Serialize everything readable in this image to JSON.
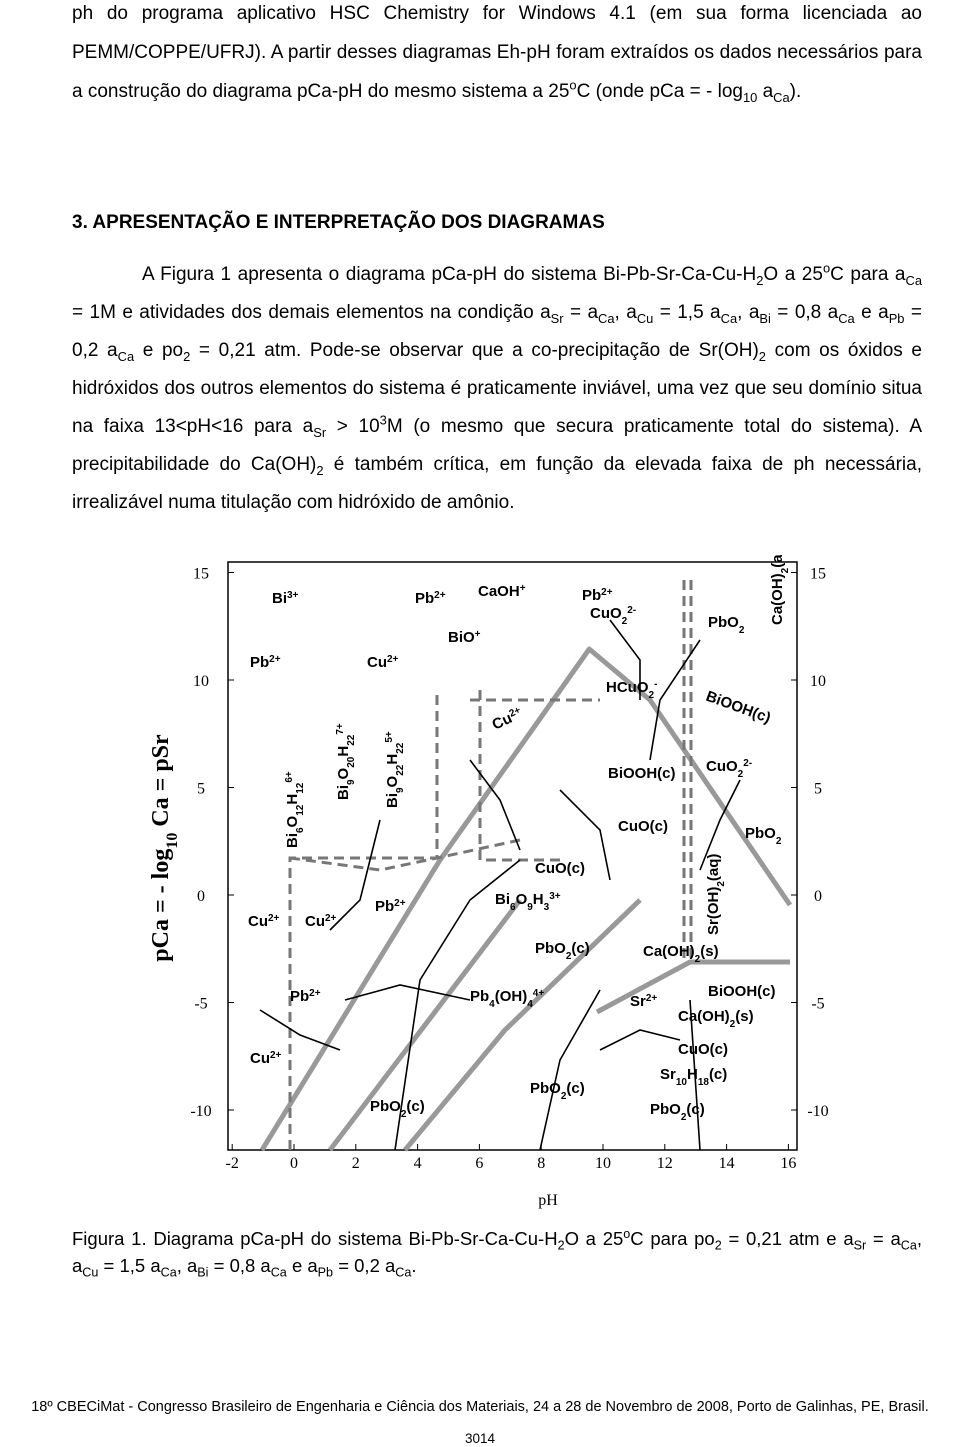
{
  "paragraphs": [
    {
      "runs": [
        "ph do programa aplicativo HSC Chemistry for Windows 4.1 (em sua forma licenciada ao PEMM/COPPE/UFRJ). A partir desses diagramas Eh-pH foram extraídos os dados necessários para a construção do diagrama pCa-pH do mesmo sistema a 25",
        {
          "sup": "o"
        },
        "C (onde pCa = - log",
        {
          "sub": "10"
        },
        " a",
        {
          "sub": "Ca"
        },
        ")."
      ]
    },
    {
      "runs": [
        "A Figura 1 apresenta o diagrama pCa-pH do sistema Bi-Pb-Sr-Ca-Cu-H",
        {
          "sub": "2"
        },
        "O a 25",
        {
          "sup": "o"
        },
        "C para a",
        {
          "sub": "Ca"
        },
        " = 1M e atividades dos demais elementos na condição a",
        {
          "sub": "Sr"
        },
        " = a",
        {
          "sub": "Ca"
        },
        ", a",
        {
          "sub": "Cu"
        },
        " = 1,5 a",
        {
          "sub": "Ca"
        },
        ", a",
        {
          "sub": "Bi"
        },
        " = 0,8 a",
        {
          "sub": "Ca"
        },
        " e a",
        {
          "sub": "Pb"
        },
        " = 0,2 a",
        {
          "sub": "Ca"
        },
        " e po",
        {
          "sub": "2"
        },
        " = 0,21 atm. Pode-se observar que a co-precipitação de Sr(OH)",
        {
          "sub": "2"
        },
        " com os óxidos e hidróxidos dos outros elementos do sistema é praticamente inviável, uma vez que seu domínio situa na faixa 13<pH<16 para a",
        {
          "sub": "Sr"
        },
        " > 10",
        {
          "sup": "3"
        },
        "M (o mesmo que secura praticamente total do sistema). A precipitabilidade do Ca(OH)",
        {
          "sub": "2"
        },
        " é também crítica, em função da elevada faixa de ph necessária, irrealizável numa titulação com hidróxido de amônio."
      ]
    }
  ],
  "heading": "3. APRESENTAÇÃO E INTERPRETAÇÃO DOS DIAGRAMAS",
  "figure": {
    "y_axis_label": [
      "pCa = - log",
      {
        "sub": "10"
      },
      " Ca = pSr"
    ],
    "x_axis_label": "pH",
    "x_ticks": [
      -2,
      0,
      2,
      4,
      6,
      8,
      10,
      12,
      14,
      16
    ],
    "y_ticks": [
      15,
      10,
      5,
      0,
      -5,
      -10
    ],
    "species": [
      {
        "label": [
          "Bi",
          {
            "sup": "3+"
          }
        ]
      },
      {
        "label": [
          "Pb",
          {
            "sup": "2+"
          }
        ]
      },
      {
        "label": [
          "CaOH",
          {
            "sup": "+"
          }
        ]
      },
      {
        "label": [
          "Pb",
          {
            "sup": "2+"
          }
        ]
      },
      {
        "label": [
          "CuO",
          {
            "sub": "2"
          },
          {
            "sup": "2-"
          }
        ]
      },
      {
        "label": [
          "PbO",
          {
            "sub": "2"
          }
        ]
      },
      {
        "label": [
          "Ca(OH)",
          {
            "sub": "2"
          },
          "(aq)"
        ]
      },
      {
        "label": [
          "BiO",
          {
            "sup": "+"
          }
        ]
      },
      {
        "label": [
          "Pb",
          {
            "sup": "2+"
          }
        ]
      },
      {
        "label": [
          "Cu",
          {
            "sup": "2+"
          }
        ]
      },
      {
        "label": [
          "HCuO",
          {
            "sub": "2"
          },
          {
            "sup": "-"
          }
        ]
      },
      {
        "label": [
          "BiOOH(c)"
        ]
      },
      {
        "label": [
          "Bi",
          {
            "sub": "6"
          },
          "O",
          {
            "sub": "12"
          },
          "H",
          {
            "sub": "12"
          },
          {
            "sup": "6+"
          }
        ]
      },
      {
        "label": [
          "Bi",
          {
            "sub": "9"
          },
          "O",
          {
            "sub": "20"
          },
          "H",
          {
            "sub": "22"
          },
          {
            "sup": "7+"
          }
        ]
      },
      {
        "label": [
          "Bi",
          {
            "sub": "9"
          },
          "O",
          {
            "sub": "22"
          },
          "H",
          {
            "sub": "22"
          },
          {
            "sup": "5+"
          }
        ]
      },
      {
        "label": [
          "Cu",
          {
            "sup": "2+"
          }
        ]
      },
      {
        "label": [
          "BiOOH(c)"
        ]
      },
      {
        "label": [
          "CuO",
          {
            "sub": "2"
          },
          {
            "sup": "2-"
          }
        ]
      },
      {
        "label": [
          "CuO(c)"
        ]
      },
      {
        "label": [
          "PbO",
          {
            "sub": "2"
          }
        ]
      },
      {
        "label": [
          "CuO(c)"
        ]
      },
      {
        "label": [
          "Sr(OH)",
          {
            "sub": "2"
          },
          "(aq)"
        ]
      },
      {
        "label": [
          "Cu",
          {
            "sup": "2+"
          }
        ]
      },
      {
        "label": [
          "Cu",
          {
            "sup": "2+"
          }
        ]
      },
      {
        "label": [
          "Pb",
          {
            "sup": "2+"
          }
        ]
      },
      {
        "label": [
          "Bi",
          {
            "sub": "6"
          },
          "O",
          {
            "sub": "9"
          },
          "H",
          {
            "sub": "3"
          },
          {
            "sup": "3+"
          }
        ]
      },
      {
        "label": [
          "PbO",
          {
            "sub": "2"
          },
          "(c)"
        ]
      },
      {
        "label": [
          "Ca(OH)",
          {
            "sub": "2"
          },
          "(s)"
        ]
      },
      {
        "label": [
          "Pb",
          {
            "sup": "2+"
          }
        ]
      },
      {
        "label": [
          "Pb",
          {
            "sub": "4"
          },
          "(OH)",
          {
            "sub": "4"
          },
          {
            "sup": "4+"
          }
        ]
      },
      {
        "label": [
          "Sr",
          {
            "sup": "2+"
          }
        ]
      },
      {
        "label": [
          "BiOOH(c)"
        ]
      },
      {
        "label": [
          "Ca(OH)",
          {
            "sub": "2"
          },
          "(s)"
        ]
      },
      {
        "label": [
          "CuO(c)"
        ]
      },
      {
        "label": [
          "Sr",
          {
            "sub": "10"
          },
          "H",
          {
            "sub": "18"
          },
          "(c)"
        ]
      },
      {
        "label": [
          "Cu",
          {
            "sup": "2+"
          }
        ]
      },
      {
        "label": [
          "PbO",
          {
            "sub": "2"
          },
          "(c)"
        ]
      },
      {
        "label": [
          "PbO",
          {
            "sub": "2"
          },
          "(c)"
        ]
      },
      {
        "label": [
          "PbO",
          {
            "sub": "2"
          },
          "(c)"
        ]
      }
    ]
  },
  "caption": [
    "Figura 1. Diagrama pCa-pH do sistema Bi-Pb-Sr-Ca-Cu-H",
    {
      "sub": "2"
    },
    "O a 25",
    {
      "sup": "o"
    },
    "C  para po",
    {
      "sub": "2"
    },
    " = 0,21 atm e a",
    {
      "sub": "Sr"
    },
    " = a",
    {
      "sub": "Ca"
    },
    ", a",
    {
      "sub": "Cu"
    },
    " = 1,5 a",
    {
      "sub": "Ca"
    },
    ", a",
    {
      "sub": "Bi"
    },
    " = 0,8 a",
    {
      "sub": "Ca"
    },
    " e a",
    {
      "sub": "Pb"
    },
    " = 0,2 a",
    {
      "sub": "Ca"
    },
    "."
  ],
  "footer": "18º CBECiMat - Congresso Brasileiro de Engenharia e Ciência dos Materiais, 24 a 28 de Novembro de 2008, Porto de Galinhas, PE, Brasil.",
  "page_number": "3014"
}
